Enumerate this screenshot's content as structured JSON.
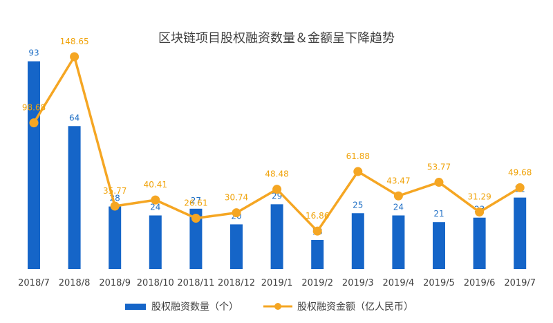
{
  "chart_data": {
    "type": "bar",
    "title": "区块链项目股权融资数量＆金额呈下降趋势",
    "categories": [
      "2018/7",
      "2018/8",
      "2018/9",
      "2018/10",
      "2018/11",
      "2018/12",
      "2019/1",
      "2019/2",
      "2019/3",
      "2019/4",
      "2019/5",
      "2019/6",
      "2019/7"
    ],
    "series": [
      {
        "name": "股权融资数量（个）",
        "type": "bar",
        "color": "#1565c8",
        "values": [
          93,
          64,
          28,
          24,
          27,
          20,
          29,
          13,
          25,
          24,
          21,
          23,
          32
        ]
      },
      {
        "name": "股权融资金额（亿人民币）",
        "type": "line",
        "color": "#f5a623",
        "values": [
          98.68,
          148.65,
          35.77,
          40.41,
          26.61,
          30.74,
          48.48,
          16.86,
          61.88,
          43.47,
          53.77,
          31.29,
          49.68
        ]
      }
    ],
    "legend_position": "bottom",
    "grid": false
  }
}
